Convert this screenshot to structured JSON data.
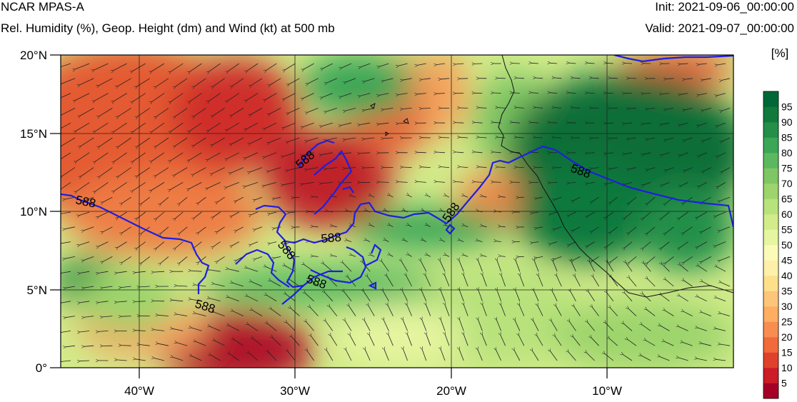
{
  "header": {
    "title": "NCAR MPAS-A",
    "subtitle": "Rel. Humidity (%), Geop. Height (dm) and Wind (kt) at 500 mb",
    "init": "Init: 2021-09-06_00:00:00",
    "valid": "Valid: 2021-09-07_00:00:00"
  },
  "map": {
    "lat_labels": [
      "20°N",
      "15°N",
      "10°N",
      "5°N",
      "0°"
    ],
    "lon_labels": [
      "40°W",
      "30°W",
      "20°W",
      "10°W"
    ],
    "contour_labels": [
      "588",
      "588",
      "588",
      "588",
      "588",
      "588",
      "588"
    ],
    "contour_color": "#1f1fe0"
  },
  "colorbar": {
    "unit_label": "[%]",
    "tick_labels": [
      "95",
      "90",
      "85",
      "80",
      "75",
      "70",
      "65",
      "60",
      "55",
      "50",
      "45",
      "40",
      "35",
      "30",
      "25",
      "20",
      "15",
      "10",
      "5"
    ],
    "colors": [
      "#a50026",
      "#cc1c27",
      "#e0412c",
      "#f06a3b",
      "#f88d52",
      "#fdae61",
      "#fdc57a",
      "#fee08b",
      "#fef0a8",
      "#fbfbb8",
      "#e6f5a0",
      "#d2ec8a",
      "#b8e27b",
      "#9dd46c",
      "#7fc664",
      "#5ab95f",
      "#3aa656",
      "#238f49",
      "#11793c",
      "#006837"
    ]
  }
}
